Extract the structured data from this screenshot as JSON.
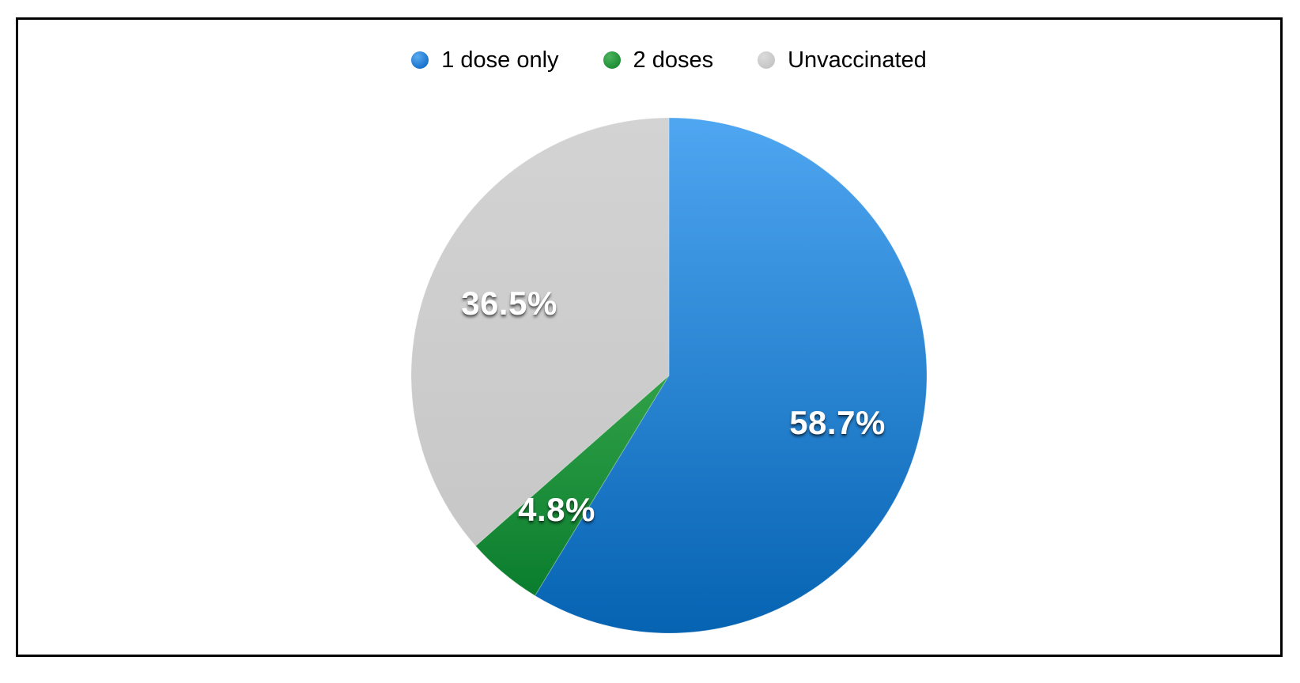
{
  "figure": {
    "background_color": "#ffffff",
    "border_color": "#000000"
  },
  "legend": {
    "position": "top",
    "items": [
      {
        "label": "1 dose only",
        "color": "#1A73CE",
        "color_light": "#5AABEE"
      },
      {
        "label": "2 doses",
        "color": "#1F8F35",
        "color_light": "#4CB35D"
      },
      {
        "label": "Unvaccinated",
        "color": "#C6C6C6",
        "color_light": "#DBDBDB"
      }
    ]
  },
  "chart_data": {
    "type": "pie",
    "title": "",
    "categories": [
      "1 dose only",
      "2 doses",
      "Unvaccinated"
    ],
    "values": [
      58.7,
      4.8,
      36.5
    ],
    "start_angle_deg": 0,
    "direction": "clockwise",
    "legend_position": "top",
    "label_radius_fraction": 0.68,
    "slices": [
      {
        "name": "1 dose only",
        "value": 58.7,
        "label": "58.7%",
        "color_top": "#4FA6F1",
        "color_bottom": "#0563B2"
      },
      {
        "name": "2 doses",
        "value": 4.8,
        "label": "4.8%",
        "color_top": "#31A148",
        "color_bottom": "#0A7D2E"
      },
      {
        "name": "Unvaccinated",
        "value": 36.5,
        "label": "36.5%",
        "color_top": "#D3D3D3",
        "color_bottom": "#C7C7C7"
      }
    ]
  }
}
